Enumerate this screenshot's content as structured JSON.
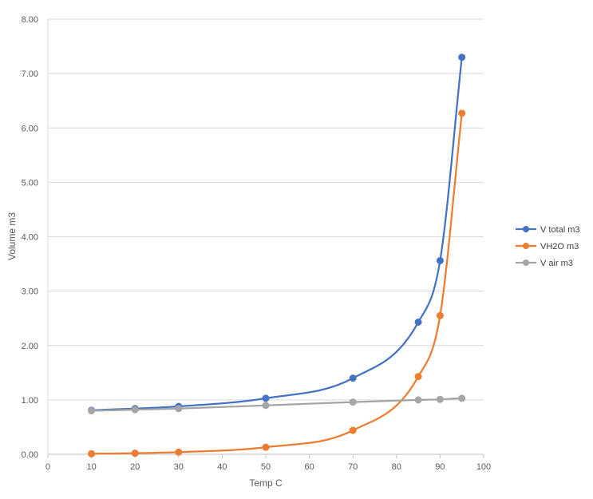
{
  "chart_data": {
    "type": "line",
    "title": "",
    "xlabel": "Temp C",
    "ylabel": "Volume m3",
    "xlim": [
      0,
      100
    ],
    "ylim": [
      0,
      8
    ],
    "x_ticks": [
      0,
      10,
      20,
      30,
      40,
      50,
      60,
      70,
      80,
      90,
      100
    ],
    "y_ticks": [
      "0.00",
      "1.00",
      "2.00",
      "3.00",
      "4.00",
      "5.00",
      "6.00",
      "7.00",
      "8.00"
    ],
    "grid": "horizontal",
    "legend_position": "right",
    "smooth": true,
    "x": [
      10,
      20,
      30,
      50,
      70,
      85,
      90,
      95
    ],
    "series": [
      {
        "name": "V total m3",
        "color": "#4472C4",
        "values": [
          0.81,
          0.84,
          0.88,
          1.03,
          1.4,
          2.43,
          3.56,
          7.3
        ]
      },
      {
        "name": "VH2O  m3",
        "color": "#ED7D31",
        "values": [
          0.01,
          0.02,
          0.04,
          0.13,
          0.44,
          1.43,
          2.55,
          6.27
        ]
      },
      {
        "name": "V air  m3",
        "color": "#A5A5A5",
        "values": [
          0.8,
          0.82,
          0.84,
          0.9,
          0.96,
          1.0,
          1.01,
          1.03
        ]
      }
    ]
  }
}
